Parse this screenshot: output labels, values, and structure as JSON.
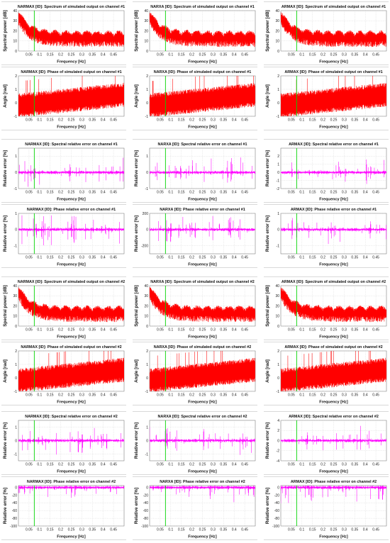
{
  "figure": {
    "colors": {
      "spectrum": "#ff0000",
      "error": "#ff00ff",
      "marker": "#00d400",
      "grid": "#cfcfcf",
      "background": "#ffffff",
      "frame_border": "#d9d9d9"
    }
  },
  "chart_data": [
    {
      "type": "area",
      "title": "NARMAX [ID]: Spectrum of simulated output on channel #1",
      "xlabel": "Frequency [Hz]",
      "ylabel": "Spectral power [dB]",
      "xlim": [
        0,
        0.5
      ],
      "ylim": [
        0,
        40
      ],
      "yticks": [
        0,
        10,
        20,
        30,
        40
      ],
      "xticks": [
        0.05,
        0.1,
        0.15,
        0.2,
        0.25,
        0.3,
        0.35,
        0.4,
        0.45
      ],
      "grid": true,
      "marker_x": 0.075
    },
    {
      "type": "area",
      "title": "NARXA [ID]: Spectrum of simulated output on channel #1",
      "xlabel": "Frequency [Hz]",
      "ylabel": "Spectral power [dB]",
      "xlim": [
        0,
        0.5
      ],
      "ylim": [
        0,
        40
      ],
      "yticks": [
        0,
        10,
        20,
        30,
        40
      ],
      "xticks": [
        0.05,
        0.1,
        0.15,
        0.2,
        0.25,
        0.3,
        0.35,
        0.4,
        0.45
      ],
      "grid": true,
      "marker_x": 0.075
    },
    {
      "type": "area",
      "title": "ARMAX [ID]: Spectrum of simulated output on channel #1",
      "xlabel": "Frequency [Hz]",
      "ylabel": "Spectral power [dB]",
      "xlim": [
        0,
        0.5
      ],
      "ylim": [
        0,
        40
      ],
      "yticks": [
        0,
        10,
        20,
        30,
        40
      ],
      "xticks": [
        0.05,
        0.1,
        0.15,
        0.2,
        0.25,
        0.3,
        0.35,
        0.4,
        0.45
      ],
      "grid": true,
      "marker_x": 0.075
    },
    {
      "type": "area",
      "title": "NARMAX [ID]: Phase of simulated output on channel #1",
      "xlabel": "Frequency [Hz]",
      "ylabel": "Angle [rad]",
      "xlim": [
        0,
        0.5
      ],
      "ylim": [
        -1,
        2
      ],
      "yticks": [
        -1,
        0,
        1,
        2
      ],
      "xticks": [
        0.05,
        0.1,
        0.15,
        0.2,
        0.25,
        0.3,
        0.35,
        0.4,
        0.45
      ],
      "grid": true,
      "marker_x": 0.075
    },
    {
      "type": "area",
      "title": "NARXA [ID]: Phase of simulated output on channel #1",
      "xlabel": "Frequency [Hz]",
      "ylabel": "Angle [rad]",
      "xlim": [
        0,
        0.5
      ],
      "ylim": [
        -1,
        2
      ],
      "yticks": [
        -1,
        0,
        1,
        2
      ],
      "xticks": [
        0.05,
        0.1,
        0.15,
        0.2,
        0.25,
        0.3,
        0.35,
        0.4,
        0.45
      ],
      "grid": true,
      "marker_x": 0.075
    },
    {
      "type": "area",
      "title": "ARMAX [ID]: Phase of simulated output on channel #1",
      "xlabel": "Frequency [Hz]",
      "ylabel": "Angle [rad]",
      "xlim": [
        0,
        0.5
      ],
      "ylim": [
        -1,
        2
      ],
      "yticks": [
        -1,
        0,
        1,
        2
      ],
      "xticks": [
        0.05,
        0.1,
        0.15,
        0.2,
        0.25,
        0.3,
        0.35,
        0.4,
        0.45
      ],
      "grid": true,
      "marker_x": 0.075
    },
    {
      "type": "line",
      "title": "NARMAX [ID]: Spectral relative error on channel #1",
      "xlabel": "Frequency [Hz]",
      "ylabel": "Relative error [%]",
      "xlim": [
        0,
        0.5
      ],
      "ylim": [
        -1,
        1.5
      ],
      "yticks": [
        -1,
        0,
        1
      ],
      "xticks": [
        0.05,
        0.1,
        0.15,
        0.2,
        0.25,
        0.3,
        0.35,
        0.4,
        0.45
      ],
      "grid": true,
      "marker_x": 0.075
    },
    {
      "type": "line",
      "title": "NARXA [ID]: Spectral relative error on channel #1",
      "xlabel": "Frequency [Hz]",
      "ylabel": "Relative error [%]",
      "xlim": [
        0,
        0.5
      ],
      "ylim": [
        -1,
        1.5
      ],
      "yticks": [
        -1,
        0,
        1
      ],
      "xticks": [
        0.05,
        0.1,
        0.15,
        0.2,
        0.25,
        0.3,
        0.35,
        0.4,
        0.45
      ],
      "grid": true,
      "marker_x": 0.075
    },
    {
      "type": "line",
      "title": "ARMAX [ID]: Spectral relative error on channel #1",
      "xlabel": "Frequency [Hz]",
      "ylabel": "Relative error [%]",
      "xlim": [
        0,
        0.5
      ],
      "ylim": [
        -2,
        3
      ],
      "yticks": [
        -2,
        -1,
        0,
        1,
        2
      ],
      "xticks": [
        0.05,
        0.1,
        0.15,
        0.2,
        0.25,
        0.3,
        0.35,
        0.4,
        0.45
      ],
      "grid": true,
      "marker_x": 0.075
    },
    {
      "type": "line",
      "title": "NARMAX [ID]: Phase relative error on channel #1",
      "xlabel": "Frequency [Hz]",
      "ylabel": "Relative error [%]",
      "xlim": [
        0,
        0.5
      ],
      "ylim": [
        -1.5,
        1
      ],
      "yticks": [
        -1,
        0,
        1
      ],
      "xticks": [
        0.05,
        0.1,
        0.15,
        0.2,
        0.25,
        0.3,
        0.35,
        0.4,
        0.45
      ],
      "grid": true,
      "marker_x": 0.075
    },
    {
      "type": "line",
      "title": "NARXA [ID]: Phase relative error on channel #1",
      "xlabel": "Frequency [Hz]",
      "ylabel": "Relative error [%]",
      "xlim": [
        0,
        0.5
      ],
      "ylim": [
        -300,
        200
      ],
      "yticks": [
        -200,
        0,
        200
      ],
      "xticks": [
        0.05,
        0.1,
        0.15,
        0.2,
        0.25,
        0.3,
        0.35,
        0.4,
        0.45
      ],
      "grid": true,
      "marker_x": 0.075
    },
    {
      "type": "line",
      "title": "ARMAX [ID]: Phase relative error on channel #1",
      "xlabel": "Frequency [Hz]",
      "ylabel": "Relative error [%]",
      "xlim": [
        0,
        0.5
      ],
      "ylim": [
        -1.5,
        1
      ],
      "yticks": [
        -1,
        0,
        1
      ],
      "xticks": [
        0.05,
        0.1,
        0.15,
        0.2,
        0.25,
        0.3,
        0.35,
        0.4,
        0.45
      ],
      "grid": true,
      "marker_x": 0.075
    },
    {
      "type": "area",
      "title": "NARMAX [ID]: Spectrum of simulated output on channel #2",
      "xlabel": "Frequency [Hz]",
      "ylabel": "Spectral power [dB]",
      "xlim": [
        0,
        0.5
      ],
      "ylim": [
        0,
        40
      ],
      "yticks": [
        0,
        10,
        20,
        30,
        40
      ],
      "xticks": [
        0.05,
        0.1,
        0.15,
        0.2,
        0.25,
        0.3,
        0.35,
        0.4,
        0.45
      ],
      "grid": true,
      "marker_x": 0.075
    },
    {
      "type": "area",
      "title": "NARXA [ID]: Spectrum of simulated output on channel #2",
      "xlabel": "Frequency [Hz]",
      "ylabel": "Spectral power [dB]",
      "xlim": [
        0,
        0.5
      ],
      "ylim": [
        0,
        40
      ],
      "yticks": [
        0,
        10,
        20,
        30,
        40
      ],
      "xticks": [
        0.05,
        0.1,
        0.15,
        0.2,
        0.25,
        0.3,
        0.35,
        0.4,
        0.45
      ],
      "grid": true,
      "marker_x": 0.075
    },
    {
      "type": "area",
      "title": "ARMAX [ID]: Spectrum of simulated output on channel #2",
      "xlabel": "Frequency [Hz]",
      "ylabel": "Spectral power [dB]",
      "xlim": [
        0,
        0.5
      ],
      "ylim": [
        0,
        40
      ],
      "yticks": [
        0,
        10,
        20,
        30,
        40
      ],
      "xticks": [
        0.05,
        0.1,
        0.15,
        0.2,
        0.25,
        0.3,
        0.35,
        0.4,
        0.45
      ],
      "grid": true,
      "marker_x": 0.075
    },
    {
      "type": "area",
      "title": "NARMAX [ID]: Phase of simulated output on channel #2",
      "xlabel": "Frequency [Hz]",
      "ylabel": "Angle [rad]",
      "xlim": [
        0,
        0.5
      ],
      "ylim": [
        -1,
        2
      ],
      "yticks": [
        -1,
        0,
        1,
        2
      ],
      "xticks": [
        0.05,
        0.1,
        0.15,
        0.2,
        0.25,
        0.3,
        0.35,
        0.4,
        0.45
      ],
      "grid": true,
      "marker_x": 0.075
    },
    {
      "type": "area",
      "title": "NARXA [ID]: Phase of simulated output on channel #2",
      "xlabel": "Frequency [Hz]",
      "ylabel": "Angle [rad]",
      "xlim": [
        0,
        0.5
      ],
      "ylim": [
        -1,
        2
      ],
      "yticks": [
        -1,
        0,
        1,
        2
      ],
      "xticks": [
        0.05,
        0.1,
        0.15,
        0.2,
        0.25,
        0.3,
        0.35,
        0.4,
        0.45
      ],
      "grid": true,
      "marker_x": 0.075
    },
    {
      "type": "area",
      "title": "ARMAX [ID]: Phase of simulated output on channel #2",
      "xlabel": "Frequency [Hz]",
      "ylabel": "Angle [rad]",
      "xlim": [
        0,
        0.5
      ],
      "ylim": [
        -1,
        2
      ],
      "yticks": [
        -1,
        0,
        1,
        2
      ],
      "xticks": [
        0.05,
        0.1,
        0.15,
        0.2,
        0.25,
        0.3,
        0.35,
        0.4,
        0.45
      ],
      "grid": true,
      "marker_x": 0.075
    },
    {
      "type": "line",
      "title": "NARMAX [ID]: Spectral relative error on channel #2",
      "xlabel": "Frequency [Hz]",
      "ylabel": "Relative error [%]",
      "xlim": [
        0,
        0.5
      ],
      "ylim": [
        -1.5,
        1.5
      ],
      "yticks": [
        -1,
        0,
        1
      ],
      "xticks": [
        0.05,
        0.1,
        0.15,
        0.2,
        0.25,
        0.3,
        0.35,
        0.4,
        0.45
      ],
      "grid": true,
      "marker_x": 0.075
    },
    {
      "type": "line",
      "title": "NARXA [ID]: Spectral relative error on channel #2",
      "xlabel": "Frequency [Hz]",
      "ylabel": "Relative error [%]",
      "xlim": [
        0,
        0.5
      ],
      "ylim": [
        -1.5,
        1.5
      ],
      "yticks": [
        -1,
        0,
        1
      ],
      "xticks": [
        0.05,
        0.1,
        0.15,
        0.2,
        0.25,
        0.3,
        0.35,
        0.4,
        0.45
      ],
      "grid": true,
      "marker_x": 0.075
    },
    {
      "type": "line",
      "title": "ARMAX [ID]: Spectral relative error on channel #2",
      "xlabel": "Frequency [Hz]",
      "ylabel": "Relative error [%]",
      "xlim": [
        0,
        0.5
      ],
      "ylim": [
        -4,
        4
      ],
      "yticks": [
        -4,
        -2,
        0,
        2,
        4
      ],
      "xticks": [
        0.05,
        0.1,
        0.15,
        0.2,
        0.25,
        0.3,
        0.35,
        0.4,
        0.45
      ],
      "grid": true,
      "marker_x": 0.075
    },
    {
      "type": "line",
      "title": "NARMAX [ID]: Phase relative error on channel #2",
      "xlabel": "Frequency [Hz]",
      "ylabel": "Relative error [%]",
      "xlim": [
        0,
        0.5
      ],
      "ylim": [
        -100,
        5
      ],
      "yticks": [
        -100,
        -80,
        -60,
        -40,
        -20,
        0
      ],
      "xticks": [
        0.05,
        0.1,
        0.15,
        0.2,
        0.25,
        0.3,
        0.35,
        0.4,
        0.45
      ],
      "grid": true,
      "marker_x": 0.075
    },
    {
      "type": "line",
      "title": "NARXA [ID]: Phase relative error on channel #2",
      "xlabel": "Frequency [Hz]",
      "ylabel": "Relative error [%]",
      "xlim": [
        0,
        0.5
      ],
      "ylim": [
        -100,
        5
      ],
      "yticks": [
        -100,
        -80,
        -60,
        -40,
        -20,
        0
      ],
      "xticks": [
        0.05,
        0.1,
        0.15,
        0.2,
        0.25,
        0.3,
        0.35,
        0.4,
        0.45
      ],
      "grid": true,
      "marker_x": 0.075
    },
    {
      "type": "line",
      "title": "ARMAX [ID]: Phase relative error on channel #2",
      "xlabel": "Frequency [Hz]",
      "ylabel": "Relative error [%]",
      "xlim": [
        0,
        0.5
      ],
      "ylim": [
        -100,
        5
      ],
      "yticks": [
        -100,
        -80,
        -60,
        -40,
        -20,
        0
      ],
      "xticks": [
        0.05,
        0.1,
        0.15,
        0.2,
        0.25,
        0.3,
        0.35,
        0.4,
        0.45
      ],
      "grid": true,
      "marker_x": 0.075
    }
  ]
}
